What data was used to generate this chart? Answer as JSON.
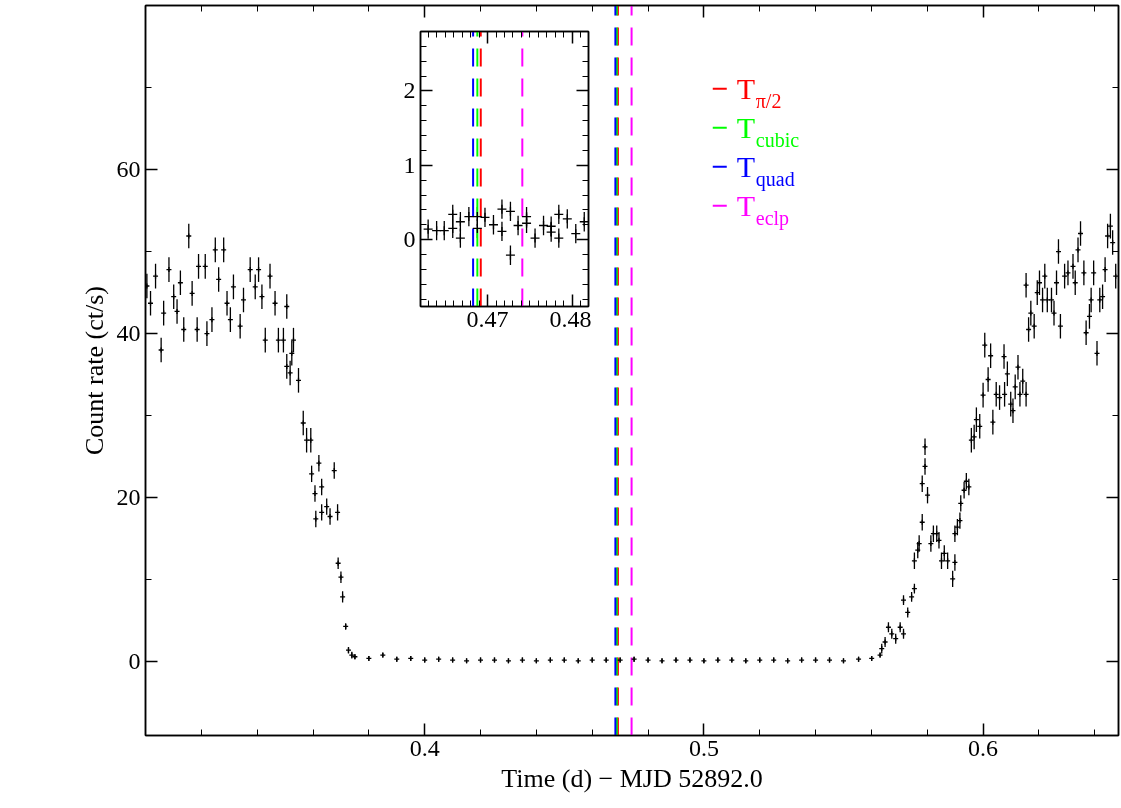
{
  "chart_data": [
    {
      "type": "scatter",
      "xlabel": "Time (d) − MJD 52892.0",
      "ylabel": "Count rate (ct/s)",
      "xlim": [
        0.3,
        0.6485
      ],
      "ylim": [
        -9,
        80
      ],
      "xticks": [
        {
          "value": 0.3,
          "label": null
        },
        {
          "value": 0.32,
          "label": null
        },
        {
          "value": 0.34,
          "label": null
        },
        {
          "value": 0.36,
          "label": null
        },
        {
          "value": 0.38,
          "label": null
        },
        0.4,
        {
          "value": 0.42,
          "label": null
        },
        {
          "value": 0.44,
          "label": null
        },
        {
          "value": 0.46,
          "label": null
        },
        {
          "value": 0.48,
          "label": null
        },
        0.5,
        {
          "value": 0.52,
          "label": null
        },
        {
          "value": 0.54,
          "label": null
        },
        {
          "value": 0.56,
          "label": null
        },
        {
          "value": 0.58,
          "label": null
        },
        0.6,
        {
          "value": 0.62,
          "label": null
        },
        {
          "value": 0.64,
          "label": null
        }
      ],
      "yticks": [
        0,
        {
          "value": 10,
          "label": null
        },
        20,
        {
          "value": 30,
          "label": null
        },
        40,
        {
          "value": 50,
          "label": null
        },
        60,
        {
          "value": 70,
          "label": null
        }
      ],
      "marker": "cross",
      "grid": false,
      "legend": "top",
      "series": [
        {
          "color": "#000000",
          "x": [
            0.3005,
            0.3018,
            0.3036,
            0.3056,
            0.3065,
            0.3084,
            0.3101,
            0.3113,
            0.3125,
            0.3137,
            0.3155,
            0.3167,
            0.3185,
            0.319,
            0.3214,
            0.322,
            0.3238,
            0.325,
            0.3262,
            0.328,
            0.3292,
            0.3304,
            0.3315,
            0.3339,
            0.3351,
            0.3375,
            0.3393,
            0.3405,
            0.3417,
            0.3429,
            0.3446,
            0.3464,
            0.3476,
            0.3494,
            0.3506,
            0.3524,
            0.353,
            0.3506,
            0.3518,
            0.3548,
            0.3565,
            0.3577,
            0.3592,
            0.3595,
            0.3607,
            0.3621,
            0.3631,
            0.361,
            0.3631,
            0.3649,
            0.3661,
            0.3676,
            0.3688,
            0.369,
            0.37,
            0.3706,
            0.3717,
            0.3727,
            0.3739
          ],
          "values": [
            45.8,
            43.7,
            47.0,
            38.0,
            42.5,
            47.8,
            44.5,
            42.7,
            46.2,
            40.5,
            51.9,
            44.9,
            40.5,
            48.2,
            48.2,
            40.0,
            41.7,
            50.2,
            46.6,
            50.2,
            43.7,
            41.7,
            45.7,
            40.9,
            44.1,
            47.8,
            45.7,
            47.8,
            44.5,
            39.2,
            47.0,
            43.7,
            39.2,
            39.2,
            43.3,
            37.6,
            39.2,
            36.0,
            35.2,
            34.3,
            29.1,
            27.0,
            27.0,
            22.9,
            20.5,
            24.2,
            21.3,
            17.4,
            18.2,
            18.9,
            17.7,
            23.3,
            18.2,
            12.0,
            10.3,
            7.9,
            4.3,
            1.4,
            0.8
          ],
          "errors": [
            1.5,
            1.5,
            1.5,
            1.5,
            1.5,
            1.5,
            1.5,
            1.5,
            1.5,
            1.5,
            1.5,
            1.5,
            1.5,
            1.5,
            1.5,
            1.5,
            1.5,
            1.5,
            1.5,
            1.5,
            1.5,
            1.5,
            1.5,
            1.5,
            1.5,
            1.5,
            1.5,
            1.5,
            1.5,
            1.5,
            1.5,
            1.5,
            1.5,
            1.5,
            1.5,
            1.5,
            1.5,
            1.5,
            1.5,
            1.5,
            1.5,
            1.5,
            1.5,
            1.0,
            1.0,
            1.0,
            1.0,
            1.0,
            1.0,
            1.0,
            1.0,
            1.0,
            1.0,
            0.7,
            0.7,
            0.7,
            0.4,
            0.4,
            0.4
          ]
        },
        {
          "color": "#000000",
          "x": [
            0.375,
            0.38,
            0.385,
            0.39,
            0.395,
            0.4,
            0.405,
            0.41,
            0.415,
            0.42,
            0.425,
            0.43,
            0.435,
            0.44,
            0.445,
            0.45,
            0.455,
            0.46,
            0.465,
            0.47,
            0.475,
            0.48,
            0.485,
            0.49,
            0.495,
            0.5,
            0.505,
            0.51,
            0.515,
            0.52,
            0.525,
            0.53,
            0.535,
            0.54,
            0.545,
            0.55
          ],
          "values": [
            0.6,
            0.4,
            0.8,
            0.3,
            0.4,
            0.2,
            0.3,
            0.2,
            0.1,
            0.2,
            0.2,
            0.1,
            0.2,
            0.1,
            0.2,
            0.2,
            0.1,
            0.2,
            0.2,
            0.2,
            0.3,
            0.2,
            0.1,
            0.2,
            0.2,
            0.1,
            0.2,
            0.2,
            0.1,
            0.2,
            0.2,
            0.1,
            0.2,
            0.2,
            0.2,
            0.1
          ],
          "errors": [
            0.3,
            0.3,
            0.3,
            0.3,
            0.3,
            0.3,
            0.3,
            0.3,
            0.3,
            0.3,
            0.3,
            0.3,
            0.3,
            0.3,
            0.3,
            0.3,
            0.3,
            0.3,
            0.3,
            0.3,
            0.3,
            0.3,
            0.3,
            0.3,
            0.3,
            0.3,
            0.3,
            0.3,
            0.3,
            0.3,
            0.3,
            0.3,
            0.3,
            0.3,
            0.3,
            0.3
          ]
        },
        {
          "color": "#000000",
          "x": [
            0.5554,
            0.5601,
            0.5631,
            0.5637,
            0.5649,
            0.5661,
            0.5673,
            0.5687,
            0.5703,
            0.5715,
            0.5715,
            0.573,
            0.5744,
            0.5754,
            0.5754,
            0.5766,
            0.5771,
            0.5782,
            0.5782,
            0.5792,
            0.5792,
            0.5801,
            0.5813,
            0.5822,
            0.5834,
            0.5842,
            0.5851,
            0.5861,
            0.5873,
            0.5891,
            0.5899,
            0.5899,
            0.5908,
            0.5917,
            0.592,
            0.5932,
            0.594,
            0.5949,
            0.5958,
            0.5968,
            0.5976,
            0.5988,
            0.6,
            0.6006,
            0.6018,
            0.6027,
            0.6035,
            0.6047,
            0.6059,
            0.6075,
            0.6077,
            0.6087,
            0.6099,
            0.6107,
            0.6115,
            0.6125,
            0.6132,
            0.6142,
            0.6154,
            0.6154,
            0.6163,
            0.6171,
            0.6183,
            0.6194,
            0.6202,
            0.6213,
            0.6221,
            0.623,
            0.6245,
            0.6254,
            0.6263,
            0.627,
            0.6277,
            0.6292,
            0.6304,
            0.6322,
            0.633,
            0.634,
            0.6349,
            0.6361,
            0.6369,
            0.6381,
            0.6387,
            0.6396,
            0.6408,
            0.6418,
            0.6428,
            0.6437,
            0.6446,
            0.6456,
            0.6464,
            0.6475
          ],
          "values": [
            0.3,
            0.4,
            0.8,
            1.6,
            2.4,
            4.2,
            3.4,
            2.8,
            4.2,
            3.4,
            7.5,
            6.0,
            7.9,
            8.9,
            12.3,
            13.6,
            14.4,
            17.0,
            21.7,
            23.8,
            26.2,
            20.3,
            14.4,
            15.6,
            15.6,
            14.8,
            12.3,
            13.2,
            12.3,
            10.1,
            12.1,
            15.6,
            16.4,
            17.2,
            19.3,
            20.9,
            22.0,
            21.3,
            27.0,
            27.4,
            29.5,
            28.7,
            32.5,
            38.6,
            34.4,
            37.3,
            29.2,
            32.6,
            32.2,
            37.2,
            32.6,
            35.1,
            31.4,
            30.6,
            33.5,
            35.9,
            32.6,
            34.2,
            32.6,
            45.9,
            40.5,
            42.5,
            40.9,
            45.0,
            46.2,
            44.1,
            47.0,
            44.1,
            44.1,
            42.5,
            46.2,
            50.0,
            40.9,
            47.0,
            47.4,
            48.2,
            46.2,
            50.2,
            52.2,
            47.4,
            40.1,
            42.1,
            44.1,
            47.4,
            37.6,
            44.1,
            44.5,
            47.8,
            51.9,
            53.1,
            51.1,
            47.0
          ],
          "errors": [
            0.3,
            0.3,
            0.3,
            0.6,
            0.6,
            0.6,
            0.6,
            0.6,
            0.6,
            0.6,
            0.6,
            0.6,
            0.6,
            0.6,
            1.0,
            1.0,
            1.0,
            1.0,
            1.0,
            1.0,
            1.0,
            1.0,
            1.0,
            1.0,
            1.0,
            1.0,
            1.0,
            1.0,
            1.0,
            1.0,
            1.0,
            1.0,
            1.0,
            1.0,
            1.0,
            1.0,
            1.0,
            1.0,
            1.5,
            1.5,
            1.5,
            1.5,
            1.5,
            1.5,
            1.5,
            1.5,
            1.5,
            1.5,
            1.5,
            1.5,
            1.5,
            1.5,
            1.5,
            1.5,
            1.5,
            1.5,
            1.5,
            1.5,
            1.5,
            1.5,
            1.5,
            1.5,
            1.5,
            1.5,
            1.5,
            1.5,
            1.5,
            1.5,
            1.5,
            1.5,
            1.5,
            1.5,
            1.5,
            1.5,
            1.5,
            1.5,
            1.5,
            1.5,
            1.5,
            1.5,
            1.5,
            1.5,
            1.5,
            1.5,
            1.5,
            1.5,
            1.5,
            1.5,
            1.5,
            1.5,
            1.5,
            1.5
          ]
        }
      ],
      "ref_lines": [
        {
          "axis": "x",
          "value": 0.4692,
          "label": "T$_{π/2}$",
          "color": "#ff0000",
          "line_style": "dashed"
        },
        {
          "axis": "x",
          "value": 0.4688,
          "label": "T$_{cubic}$",
          "color": "#00ff00",
          "line_style": "dashed"
        },
        {
          "axis": "x",
          "value": 0.4683,
          "label": "T$_{quad}$",
          "color": "#0000ff",
          "line_style": "dashed"
        },
        {
          "axis": "x",
          "value": 0.4741,
          "label": "T$_{eclp}$",
          "color": "#ff00ff",
          "line_style": "dashed"
        }
      ]
    },
    {
      "type": "scatter",
      "xlim": [
        0.4621,
        0.4819
      ],
      "ylim": [
        -0.9,
        2.8
      ],
      "xticks": [
        {
          "value": 0.463,
          "label": null
        },
        {
          "value": 0.464,
          "label": null
        },
        {
          "value": 0.465,
          "label": null
        },
        {
          "value": 0.466,
          "label": null
        },
        {
          "value": 0.467,
          "label": null
        },
        {
          "value": 0.468,
          "label": null
        },
        {
          "value": 0.469,
          "label": null
        },
        0.47,
        {
          "value": 0.471,
          "label": null
        },
        {
          "value": 0.472,
          "label": null
        },
        {
          "value": 0.473,
          "label": null
        },
        {
          "value": 0.474,
          "label": null
        },
        {
          "value": 0.475,
          "label": null
        },
        {
          "value": 0.476,
          "label": null
        },
        {
          "value": 0.477,
          "label": null
        },
        {
          "value": 0.478,
          "label": null
        },
        {
          "value": 0.479,
          "label": null
        },
        0.48,
        {
          "value": 0.481,
          "label": null
        }
      ],
      "yticks": [
        {
          "value": -0.8,
          "label": null
        },
        {
          "value": -0.6,
          "label": null
        },
        {
          "value": -0.4,
          "label": null
        },
        {
          "value": -0.2,
          "label": null
        },
        0,
        {
          "value": 0.2,
          "label": null
        },
        {
          "value": 0.4,
          "label": null
        },
        {
          "value": 0.6,
          "label": null
        },
        {
          "value": 0.8,
          "label": null
        },
        1,
        {
          "value": 1.2,
          "label": null
        },
        {
          "value": 1.4,
          "label": null
        },
        {
          "value": 1.6,
          "label": null
        },
        {
          "value": 1.8,
          "label": null
        },
        2,
        {
          "value": 2.2,
          "label": null
        },
        {
          "value": 2.4,
          "label": null
        },
        {
          "value": 2.6,
          "label": null
        }
      ],
      "marker": "cross",
      "grid": false,
      "series": [
        {
          "color": "#000000",
          "x": [
            0.463,
            0.464,
            0.4649,
            0.4659,
            0.4659,
            0.4668,
            0.4668,
            0.4678,
            0.4688,
            0.4688,
            0.4697,
            0.4707,
            0.4717,
            0.4717,
            0.4727,
            0.4727,
            0.4736,
            0.4746,
            0.4746,
            0.4756,
            0.4766,
            0.4775,
            0.4775,
            0.4784,
            0.4784,
            0.4794,
            0.4804,
            0.4814
          ],
          "values": [
            0.14,
            0.12,
            0.12,
            0.34,
            0.15,
            0.24,
            0.02,
            0.31,
            0.31,
            0.15,
            0.3,
            0.2,
            0.41,
            0.11,
            0.38,
            -0.21,
            0.19,
            0.31,
            0.22,
            0.02,
            0.19,
            0.18,
            0.1,
            0.34,
            0.02,
            0.28,
            0.08,
            0.24
          ],
          "errors": [
            0.13,
            0.13,
            0.13,
            0.13,
            0.13,
            0.13,
            0.13,
            0.13,
            0.13,
            0.13,
            0.13,
            0.13,
            0.13,
            0.13,
            0.13,
            0.13,
            0.13,
            0.13,
            0.13,
            0.13,
            0.13,
            0.13,
            0.13,
            0.13,
            0.13,
            0.13,
            0.13,
            0.13
          ]
        }
      ],
      "ref_lines": [
        {
          "axis": "x",
          "value": 0.4692,
          "color": "#ff0000",
          "line_style": "dashed"
        },
        {
          "axis": "x",
          "value": 0.4688,
          "color": "#00ff00",
          "line_style": "dashed"
        },
        {
          "axis": "x",
          "value": 0.4683,
          "color": "#0000ff",
          "line_style": "dashed"
        },
        {
          "axis": "x",
          "value": 0.4741,
          "color": "#ff00ff",
          "line_style": "dashed"
        }
      ]
    }
  ]
}
